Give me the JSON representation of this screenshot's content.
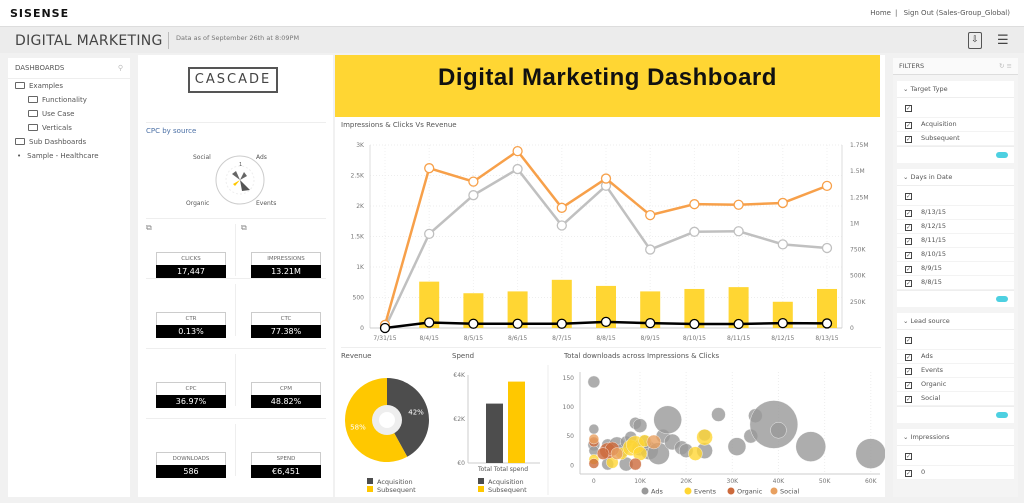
{
  "app": {
    "logo": "SISENSE",
    "home": "Home",
    "signout": "Sign Out (Sales-Group_Global)"
  },
  "header": {
    "title": "DIGITAL MARKETING",
    "as_of": "Data as of September 26th at 8:09PM",
    "export_icon": "download-document-icon",
    "menu_icon": "hamburger-icon"
  },
  "nav": {
    "title": "DASHBOARDS",
    "items": [
      {
        "label": "Examples",
        "level": 1,
        "icon": "folder-open-icon"
      },
      {
        "label": "Functionality",
        "level": 2,
        "icon": "folder-icon"
      },
      {
        "label": "Use Case",
        "level": 2,
        "icon": "folder-icon"
      },
      {
        "label": "Verticals",
        "level": 2,
        "icon": "folder-icon"
      },
      {
        "label": "Sub Dashboards",
        "level": 1,
        "icon": "folder-icon"
      },
      {
        "label": "Sample - Healthcare",
        "level": 1,
        "icon": "dot-icon"
      }
    ]
  },
  "left": {
    "logo": "CASCADE",
    "cpc_title": "CPC by source",
    "cpc_labels": [
      "Social",
      "Ads",
      "Organic",
      "Events"
    ],
    "cpc_tick": "1",
    "kpis": [
      {
        "label": "CLICKS",
        "value": "17,447"
      },
      {
        "label": "IMPRESSIONS",
        "value": "13.21M"
      },
      {
        "label": "CTR",
        "value": "0.13%"
      },
      {
        "label": "CTC",
        "value": "77.38%"
      },
      {
        "label": "CPC",
        "value": "36.97%"
      },
      {
        "label": "CPM",
        "value": "48.82%"
      },
      {
        "label": "DOWNLOADS",
        "value": "586"
      },
      {
        "label": "SPEND",
        "value": "€6,451"
      }
    ]
  },
  "banner": {
    "title": "Digital Marketing Dashboard",
    "color": "#ffd633"
  },
  "chart_data": [
    {
      "type": "line",
      "title": "Impressions & Clicks Vs Revenue",
      "categories": [
        "7/31/15",
        "8/4/15",
        "8/5/15",
        "8/6/15",
        "8/7/15",
        "8/8/15",
        "8/9/15",
        "8/10/15",
        "8/11/15",
        "8/12/15",
        "8/13/15"
      ],
      "ylim": [
        0,
        3000
      ],
      "yticks": [
        "0",
        "500",
        "1K",
        "1.5K",
        "2K",
        "2.5K",
        "3K"
      ],
      "y2lim": [
        0,
        1750000
      ],
      "y2ticks": [
        "0",
        "250K",
        "500K",
        "750K",
        "1M",
        "1.25M",
        "1.5M",
        "1.75M"
      ],
      "series": [
        {
          "kind": "bar",
          "axis": "left",
          "color": "#ffd633",
          "values": [
            0,
            760,
            570,
            600,
            790,
            690,
            600,
            640,
            670,
            430,
            640
          ]
        },
        {
          "kind": "line",
          "axis": "right",
          "color": "#c0c0c0",
          "values": [
            0,
            900000,
            1270000,
            1520000,
            980000,
            1360000,
            750000,
            920000,
            925000,
            800000,
            765000
          ]
        },
        {
          "kind": "line",
          "axis": "left",
          "color": "#f7a04a",
          "values": [
            50,
            2620,
            2400,
            2900,
            1970,
            2450,
            1850,
            2030,
            2020,
            2050,
            2330
          ]
        },
        {
          "kind": "line",
          "axis": "left",
          "color": "#000000",
          "values": [
            0,
            90,
            70,
            70,
            70,
            100,
            80,
            65,
            65,
            80,
            75
          ]
        }
      ],
      "grid": true
    },
    {
      "type": "pie",
      "title": "Revenue",
      "categories": [
        "Acquisition",
        "Subsequent"
      ],
      "values": [
        42,
        58
      ],
      "labels": [
        "42%",
        "58%"
      ],
      "colors": [
        "#4d4d4d",
        "#ffc800"
      ],
      "legend": "bottom"
    },
    {
      "type": "bar",
      "title": "Spend",
      "categories": [
        "Total Total spend"
      ],
      "series": [
        {
          "name": "Acquisition",
          "values": [
            2700
          ],
          "color": "#4d4d4d"
        },
        {
          "name": "Subsequent",
          "values": [
            3700
          ],
          "color": "#ffc800"
        }
      ],
      "ylim": [
        0,
        4000
      ],
      "yticks": [
        "€0",
        "€2K",
        "€4K"
      ],
      "legend": "bottom"
    },
    {
      "type": "scatter",
      "title": "Total downloads across Impressions & Clicks",
      "xlim": [
        -3000,
        62000
      ],
      "ylim": [
        -15,
        160
      ],
      "xticks": [
        "0",
        "10K",
        "20K",
        "30K",
        "40K",
        "50K",
        "60K"
      ],
      "yticks": [
        "0",
        "50",
        "100",
        "150"
      ],
      "legend": "bottom",
      "series": [
        {
          "name": "Ads",
          "color": "#999999",
          "points": [
            [
              0,
              143,
              6
            ],
            [
              0,
              62,
              5
            ],
            [
              0,
              35,
              6
            ],
            [
              0,
              25,
              5
            ],
            [
              3000,
              35,
              6
            ],
            [
              3000,
              2,
              6
            ],
            [
              5000,
              35,
              8
            ],
            [
              6000,
              25,
              7
            ],
            [
              7000,
              40,
              6
            ],
            [
              7000,
              2,
              7
            ],
            [
              9000,
              72,
              6
            ],
            [
              10000,
              68,
              7
            ],
            [
              10000,
              30,
              8
            ],
            [
              12000,
              25,
              9
            ],
            [
              14000,
              20,
              11
            ],
            [
              15000,
              50,
              7
            ],
            [
              16000,
              78,
              14
            ],
            [
              17000,
              40,
              8
            ],
            [
              19000,
              30,
              7
            ],
            [
              20000,
              25,
              7
            ],
            [
              24000,
              25,
              8
            ],
            [
              24000,
              52,
              6
            ],
            [
              27000,
              87,
              7
            ],
            [
              31000,
              32,
              9
            ],
            [
              34000,
              50,
              7
            ],
            [
              35000,
              85,
              7
            ],
            [
              39000,
              70,
              24
            ],
            [
              40000,
              60,
              8
            ],
            [
              47000,
              32,
              15
            ],
            [
              60000,
              20,
              15
            ],
            [
              8000,
              48,
              6
            ],
            [
              11000,
              40,
              7
            ]
          ]
        },
        {
          "name": "Events",
          "color": "#ffd633",
          "points": [
            [
              0,
              10,
              5
            ],
            [
              4000,
              5,
              6
            ],
            [
              6000,
              20,
              6
            ],
            [
              8000,
              30,
              8
            ],
            [
              9000,
              35,
              9
            ],
            [
              10000,
              20,
              7
            ],
            [
              11000,
              42,
              6
            ],
            [
              22000,
              20,
              7
            ],
            [
              24000,
              48,
              8
            ]
          ]
        },
        {
          "name": "Organic",
          "color": "#cc6a3c",
          "points": [
            [
              0,
              3,
              5
            ],
            [
              0,
              40,
              5
            ],
            [
              3000,
              25,
              8
            ],
            [
              4000,
              28,
              7
            ],
            [
              9000,
              2,
              6
            ],
            [
              2000,
              20,
              6
            ]
          ]
        },
        {
          "name": "Social",
          "color": "#e8a060",
          "points": [
            [
              0,
              45,
              5
            ],
            [
              5000,
              20,
              6
            ],
            [
              13000,
              40,
              7
            ]
          ]
        }
      ]
    }
  ],
  "filters": {
    "title": "FILTERS",
    "groups": [
      {
        "title": "Target Type",
        "items": [
          "Acquisition",
          "Subsequent"
        ],
        "toggle": true
      },
      {
        "title": "Days in Date",
        "items": [
          "8/13/15",
          "8/12/15",
          "8/11/15",
          "8/10/15",
          "8/9/15",
          "8/8/15"
        ],
        "toggle": true
      },
      {
        "title": "Lead source",
        "items": [
          "Ads",
          "Events",
          "Organic",
          "Social"
        ],
        "toggle": true
      },
      {
        "title": "Impressions",
        "items": [
          "0"
        ],
        "toggle": false
      }
    ]
  }
}
